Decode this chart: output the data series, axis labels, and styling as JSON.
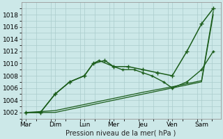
{
  "background_color": "#cce8e8",
  "grid_color": "#aacccc",
  "line_color": "#1a5c1a",
  "xlabel": "Pression niveau de la mer( hPa )",
  "ylim": [
    1001.0,
    1020.0
  ],
  "yticks": [
    1002,
    1004,
    1006,
    1008,
    1010,
    1012,
    1014,
    1016,
    1018
  ],
  "xtick_labels": [
    "Mar",
    "Dim",
    "Lun",
    "Mer",
    "Jeu",
    "Ven",
    "Sam"
  ],
  "xtick_positions": [
    0,
    1,
    2,
    3,
    4,
    5,
    6
  ],
  "series": [
    {
      "x": [
        0,
        0.5,
        1,
        1.5,
        2,
        2.3,
        2.7,
        3,
        3.5,
        4,
        4.5,
        5,
        5.5,
        6,
        6.4
      ],
      "y": [
        1002,
        1002,
        1005,
        1007,
        1008,
        1010,
        1010.5,
        1009.5,
        1009.5,
        1009,
        1008.5,
        1008,
        1012,
        1016.5,
        1019
      ],
      "marker": "+",
      "markersize": 4,
      "linewidth": 1.1,
      "linestyle": "-"
    },
    {
      "x": [
        0,
        0.5,
        1,
        1.5,
        2,
        2.3,
        2.5,
        3,
        3.3,
        3.7,
        4,
        4.3,
        4.7,
        5,
        5.5,
        6,
        6.4
      ],
      "y": [
        1002,
        1002,
        1005,
        1007,
        1008,
        1010,
        1010.5,
        1009.5,
        1009,
        1009,
        1008.5,
        1008,
        1007,
        1006,
        1007,
        1009,
        1012
      ],
      "marker": "+",
      "markersize": 3.5,
      "linewidth": 1.0,
      "linestyle": "-"
    },
    {
      "x": [
        0,
        1,
        2,
        3,
        4,
        5,
        6,
        6.4
      ],
      "y": [
        1002,
        1002,
        1003,
        1004,
        1005,
        1006,
        1007,
        1018
      ],
      "marker": null,
      "markersize": 0,
      "linewidth": 0.9,
      "linestyle": "-"
    },
    {
      "x": [
        0,
        1,
        2,
        3,
        4,
        5,
        6,
        6.4
      ],
      "y": [
        1002,
        1002.3,
        1003.3,
        1004.3,
        1005.3,
        1006.2,
        1007.2,
        1018.5
      ],
      "marker": null,
      "markersize": 0,
      "linewidth": 0.9,
      "linestyle": "-"
    }
  ]
}
